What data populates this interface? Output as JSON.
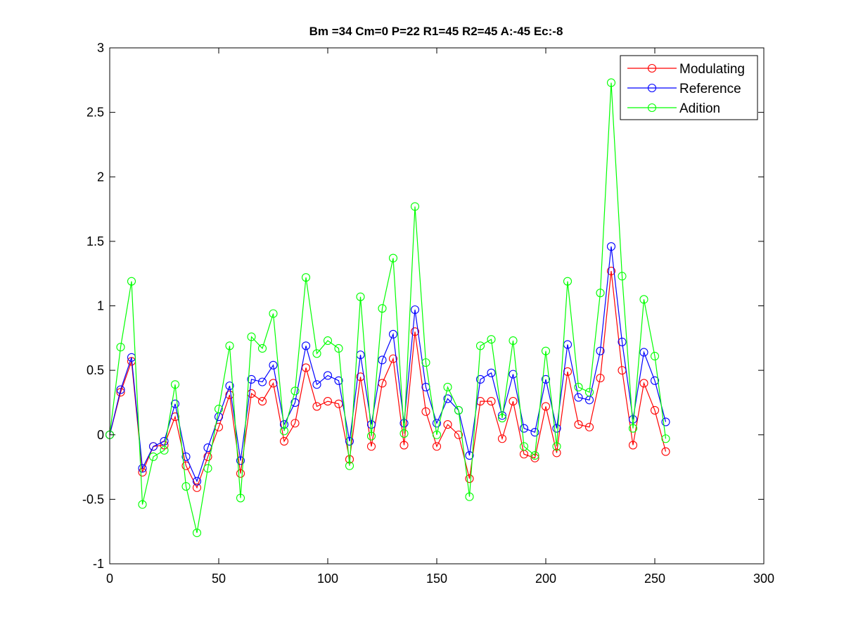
{
  "chart_data": {
    "type": "line",
    "title": "Bm =34  Cm=0  P=22  R1=45  R2=45  A:-45  Ec:-8",
    "xlabel": "",
    "ylabel": "",
    "xlim": [
      0,
      300
    ],
    "ylim": [
      -1,
      3
    ],
    "xticks": [
      0,
      50,
      100,
      150,
      200,
      250,
      300
    ],
    "yticks": [
      -1,
      -0.5,
      0,
      0.5,
      1,
      1.5,
      2,
      2.5,
      3
    ],
    "xtick_labels": [
      "0",
      "50",
      "100",
      "150",
      "200",
      "250",
      "300"
    ],
    "ytick_labels": [
      "-1",
      "-0.5",
      "0",
      "0.5",
      "1",
      "1.5",
      "2",
      "2.5",
      "3"
    ],
    "grid": false,
    "legend_position": "top-right",
    "marker": "circle",
    "x": [
      0,
      5,
      10,
      15,
      20,
      25,
      30,
      35,
      40,
      45,
      50,
      55,
      60,
      65,
      70,
      75,
      80,
      85,
      90,
      95,
      100,
      105,
      110,
      115,
      120,
      125,
      130,
      135,
      140,
      145,
      150,
      155,
      160,
      165,
      170,
      175,
      180,
      185,
      190,
      195,
      200,
      205,
      210,
      215,
      220,
      225,
      230,
      235,
      240,
      245,
      250,
      255
    ],
    "series": [
      {
        "name": "Modulating",
        "color": "#ff0000",
        "values": [
          0,
          0.33,
          0.57,
          -0.29,
          -0.09,
          -0.08,
          0.14,
          -0.24,
          -0.41,
          -0.17,
          0.06,
          0.31,
          -0.3,
          0.32,
          0.26,
          0.4,
          -0.05,
          0.09,
          0.52,
          0.22,
          0.26,
          0.24,
          -0.19,
          0.45,
          -0.09,
          0.4,
          0.59,
          -0.08,
          0.8,
          0.18,
          -0.09,
          0.08,
          0.0,
          -0.34,
          0.26,
          0.26,
          -0.03,
          0.26,
          -0.15,
          -0.18,
          0.22,
          -0.14,
          0.49,
          0.08,
          0.06,
          0.44,
          1.27,
          0.5,
          -0.08,
          0.4,
          0.19,
          -0.13
        ]
      },
      {
        "name": "Reference",
        "color": "#0000ff",
        "values": [
          0,
          0.35,
          0.6,
          -0.26,
          -0.09,
          -0.05,
          0.24,
          -0.17,
          -0.36,
          -0.1,
          0.14,
          0.38,
          -0.2,
          0.43,
          0.41,
          0.54,
          0.08,
          0.25,
          0.69,
          0.39,
          0.46,
          0.42,
          -0.05,
          0.62,
          0.08,
          0.58,
          0.78,
          0.09,
          0.97,
          0.37,
          0.09,
          0.28,
          0.19,
          -0.16,
          0.43,
          0.48,
          0.15,
          0.47,
          0.05,
          0.02,
          0.43,
          0.05,
          0.7,
          0.29,
          0.27,
          0.65,
          1.46,
          0.72,
          0.12,
          0.64,
          0.42,
          0.1
        ]
      },
      {
        "name": "Adition",
        "color": "#00ff00",
        "values": [
          0,
          0.68,
          1.19,
          -0.54,
          -0.17,
          -0.12,
          0.39,
          -0.4,
          -0.76,
          -0.26,
          0.2,
          0.69,
          -0.49,
          0.76,
          0.67,
          0.94,
          0.03,
          0.34,
          1.22,
          0.63,
          0.73,
          0.67,
          -0.24,
          1.07,
          -0.01,
          0.98,
          1.37,
          0.01,
          1.77,
          0.56,
          0.0,
          0.37,
          0.19,
          -0.48,
          0.69,
          0.74,
          0.13,
          0.73,
          -0.09,
          -0.16,
          0.65,
          -0.09,
          1.19,
          0.37,
          0.33,
          1.1,
          2.73,
          1.23,
          0.05,
          1.05,
          0.61,
          -0.03
        ]
      }
    ]
  }
}
